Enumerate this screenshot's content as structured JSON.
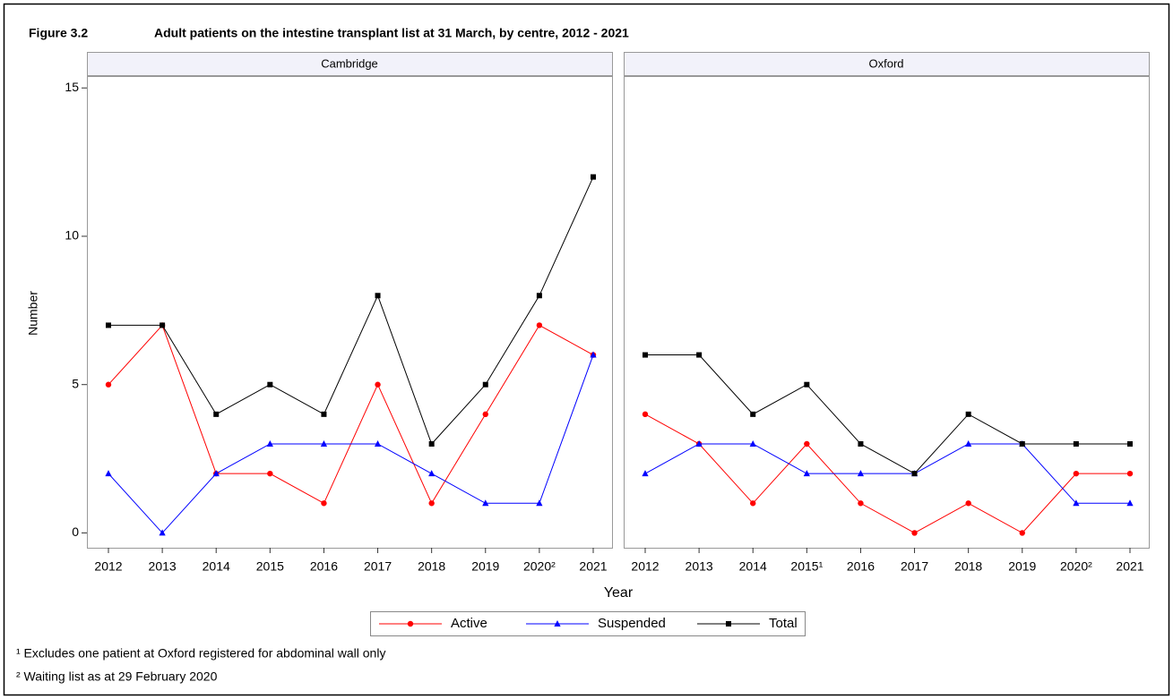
{
  "figure_label": "Figure 3.2",
  "title": "Adult patients on the intestine transplant list at 31 March, by centre, 2012 - 2021",
  "chart_data": [
    {
      "type": "line",
      "title": "Cambridge",
      "ylabel": "Number",
      "xlabel": "Year",
      "categories": [
        "2012",
        "2013",
        "2014",
        "2015",
        "2016",
        "2017",
        "2018",
        "2019",
        "2020²",
        "2021"
      ],
      "ylim": [
        -0.5,
        15.4
      ],
      "yticks": [
        0,
        5,
        10,
        15
      ],
      "grid": false,
      "series": [
        {
          "name": "Active",
          "color": "#ff0000",
          "marker": "circle",
          "values": [
            5,
            7,
            2,
            2,
            1,
            5,
            1,
            4,
            7,
            6
          ]
        },
        {
          "name": "Suspended",
          "color": "#0000ff",
          "marker": "triangle",
          "values": [
            2,
            0,
            2,
            3,
            3,
            3,
            2,
            1,
            1,
            6
          ]
        },
        {
          "name": "Total",
          "color": "#000000",
          "marker": "square",
          "values": [
            7,
            7,
            4,
            5,
            4,
            8,
            3,
            5,
            8,
            12
          ]
        }
      ]
    },
    {
      "type": "line",
      "title": "Oxford",
      "categories": [
        "2012",
        "2013",
        "2014",
        "2015¹",
        "2016",
        "2017",
        "2018",
        "2019",
        "2020²",
        "2021"
      ],
      "ylim": [
        -0.5,
        15.4
      ],
      "grid": false,
      "series": [
        {
          "name": "Active",
          "color": "#ff0000",
          "marker": "circle",
          "values": [
            4,
            3,
            1,
            3,
            1,
            0,
            1,
            0,
            2,
            2
          ]
        },
        {
          "name": "Suspended",
          "color": "#0000ff",
          "marker": "triangle",
          "values": [
            2,
            3,
            3,
            2,
            2,
            2,
            3,
            3,
            1,
            1
          ]
        },
        {
          "name": "Total",
          "color": "#000000",
          "marker": "square",
          "values": [
            6,
            6,
            4,
            5,
            3,
            2,
            4,
            3,
            3,
            3
          ]
        }
      ]
    }
  ],
  "footnotes": [
    "¹ Excludes one patient at Oxford registered for abdominal wall only",
    "² Waiting list as at 29 February 2020"
  ]
}
